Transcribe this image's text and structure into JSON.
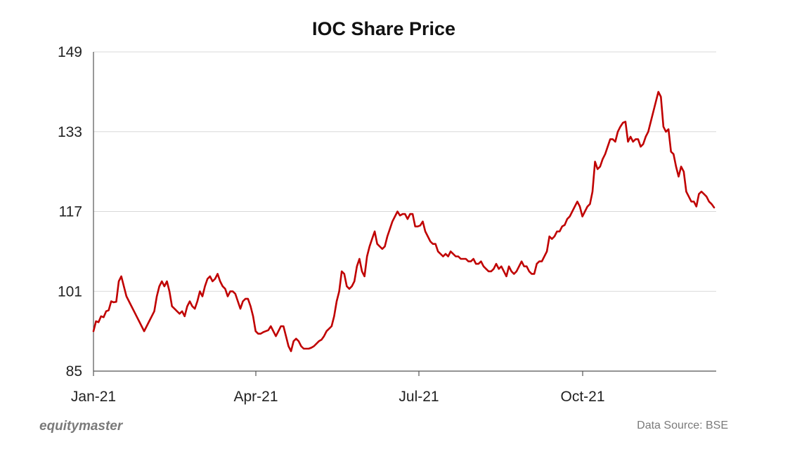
{
  "chart_data": {
    "type": "line",
    "title": "IOC Share Price",
    "xlabel": "",
    "ylabel": "",
    "x_ticks": [
      "Jan-21",
      "Apr-21",
      "Jul-21",
      "Oct-21"
    ],
    "y_ticks": [
      85,
      101,
      117,
      133,
      149
    ],
    "ylim": [
      85,
      149
    ],
    "grid": true,
    "legend": "none",
    "line_color": "#c00000",
    "series": [
      {
        "values": [
          93,
          95,
          94.8,
          96,
          95.8,
          97,
          97.2,
          99,
          98.8,
          98.9,
          103,
          104,
          102,
          100,
          99,
          98,
          97,
          96,
          95,
          94,
          93,
          94,
          95,
          96,
          97,
          100,
          102,
          103,
          102,
          103,
          101,
          98,
          97.5,
          97,
          96.5,
          97,
          96,
          98,
          99,
          98,
          97.5,
          99,
          101,
          100,
          102,
          103.5,
          104,
          103,
          103.5,
          104.5,
          103,
          102,
          101.5,
          100,
          101,
          101,
          100.5,
          99,
          97.5,
          99,
          99.5,
          99.5,
          98,
          96,
          93,
          92.5,
          92.5,
          92.8,
          93,
          93.2,
          94,
          93,
          92,
          93,
          94,
          94,
          92,
          90,
          89,
          91,
          91.5,
          91,
          90,
          89.5,
          89.5,
          89.5,
          89.7,
          90,
          90.5,
          91,
          91.3,
          92,
          93,
          93.5,
          94,
          96,
          99,
          101,
          105,
          104.5,
          102,
          101.5,
          102,
          103,
          106,
          107.5,
          105,
          104,
          108,
          110,
          111.5,
          113,
          110.5,
          110,
          109.5,
          110,
          112,
          113.5,
          115,
          116,
          117,
          116.2,
          116.5,
          116.5,
          115.5,
          116.5,
          116.5,
          114,
          114,
          114.2,
          115,
          113,
          112,
          111,
          110.5,
          110.5,
          109,
          108.5,
          108,
          108.5,
          108,
          109,
          108.5,
          108,
          108,
          107.5,
          107.5,
          107.5,
          107,
          107,
          107.5,
          106.5,
          106.5,
          107,
          106,
          105.5,
          105,
          105,
          105.5,
          106.5,
          105.5,
          106,
          105,
          104,
          106,
          105,
          104.5,
          105,
          106,
          107,
          106,
          106,
          105,
          104.5,
          104.5,
          106.5,
          107,
          107,
          108,
          109,
          112,
          111.5,
          112,
          113,
          113,
          114,
          114.3,
          115.5,
          116,
          117,
          118,
          119,
          118,
          116,
          117,
          118,
          118.5,
          121,
          127,
          125.5,
          126,
          127.5,
          128.5,
          130,
          131.5,
          131.5,
          131,
          133,
          134,
          134.8,
          135,
          131,
          132,
          131,
          131.5,
          131.5,
          130,
          130.5,
          132,
          133,
          135,
          137,
          139,
          141,
          140,
          134,
          133,
          133.5,
          129,
          128.5,
          126,
          124,
          126,
          125,
          121,
          120,
          119,
          119,
          118,
          120.5,
          121,
          120.5,
          120,
          119,
          118.5,
          117.8
        ]
      }
    ]
  },
  "footer": {
    "brand": "equitymaster",
    "source": "Data Source: BSE"
  }
}
